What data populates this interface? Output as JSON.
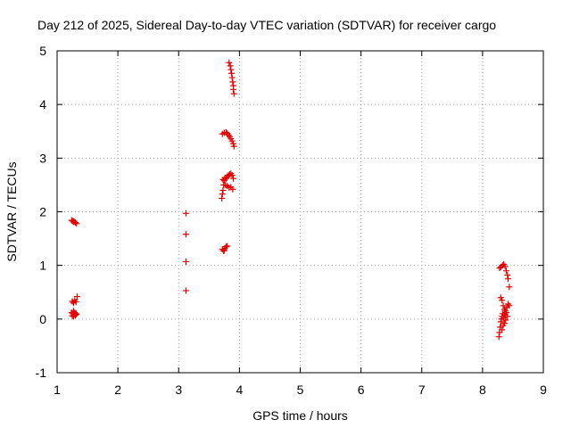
{
  "chart_data": {
    "type": "scatter",
    "title": "Day 212 of 2025, Sidereal Day-to-day VTEC variation (SDTVAR) for receiver cargo",
    "xlabel": "GPS time / hours",
    "ylabel": "SDTVAR / TECUs",
    "xlim": [
      1,
      9
    ],
    "ylim": [
      -1,
      5
    ],
    "xticks": [
      "1",
      "2",
      "3",
      "4",
      "5",
      "6",
      "7",
      "8",
      "9"
    ],
    "yticks": [
      "-1",
      "0",
      "1",
      "2",
      "3",
      "4",
      "5"
    ],
    "grid": true,
    "marker": "plus",
    "color": "#e00000",
    "series": [
      {
        "name": "SDTVAR",
        "points": [
          [
            1.24,
            1.84
          ],
          [
            1.26,
            1.83
          ],
          [
            1.28,
            1.82
          ],
          [
            1.3,
            1.8
          ],
          [
            1.32,
            1.78
          ],
          [
            1.27,
            1.81
          ],
          [
            1.25,
            0.33
          ],
          [
            1.27,
            0.3
          ],
          [
            1.29,
            0.35
          ],
          [
            1.31,
            0.32
          ],
          [
            1.33,
            0.42
          ],
          [
            1.24,
            0.12
          ],
          [
            1.25,
            0.06
          ],
          [
            1.26,
            0.1
          ],
          [
            1.27,
            0.15
          ],
          [
            1.28,
            0.08
          ],
          [
            1.29,
            0.12
          ],
          [
            1.3,
            0.07
          ],
          [
            1.31,
            0.1
          ],
          [
            1.32,
            0.09
          ],
          [
            1.27,
            0.05
          ],
          [
            3.12,
            1.97
          ],
          [
            3.12,
            1.58
          ],
          [
            3.12,
            1.07
          ],
          [
            3.12,
            0.53
          ],
          [
            3.72,
            1.3
          ],
          [
            3.74,
            1.27
          ],
          [
            3.76,
            1.32
          ],
          [
            3.78,
            1.35
          ],
          [
            3.8,
            1.36
          ],
          [
            3.75,
            1.28
          ],
          [
            3.71,
            2.25
          ],
          [
            3.72,
            2.33
          ],
          [
            3.73,
            2.4
          ],
          [
            3.74,
            2.5
          ],
          [
            3.75,
            2.58
          ],
          [
            3.73,
            2.6
          ],
          [
            3.76,
            2.63
          ],
          [
            3.78,
            2.62
          ],
          [
            3.8,
            2.65
          ],
          [
            3.82,
            2.68
          ],
          [
            3.84,
            2.7
          ],
          [
            3.86,
            2.71
          ],
          [
            3.88,
            2.68
          ],
          [
            3.9,
            2.62
          ],
          [
            3.77,
            2.5
          ],
          [
            3.8,
            2.48
          ],
          [
            3.83,
            2.45
          ],
          [
            3.86,
            2.46
          ],
          [
            3.89,
            2.42
          ],
          [
            3.72,
            3.45
          ],
          [
            3.75,
            3.47
          ],
          [
            3.78,
            3.48
          ],
          [
            3.8,
            3.46
          ],
          [
            3.82,
            3.43
          ],
          [
            3.84,
            3.4
          ],
          [
            3.86,
            3.36
          ],
          [
            3.88,
            3.32
          ],
          [
            3.9,
            3.27
          ],
          [
            3.91,
            3.22
          ],
          [
            3.83,
            4.78
          ],
          [
            3.85,
            4.72
          ],
          [
            3.86,
            4.65
          ],
          [
            3.87,
            4.58
          ],
          [
            3.88,
            4.5
          ],
          [
            3.89,
            4.42
          ],
          [
            3.9,
            4.35
          ],
          [
            3.9,
            4.28
          ],
          [
            3.91,
            4.2
          ],
          [
            8.28,
            0.95
          ],
          [
            8.3,
            0.97
          ],
          [
            8.33,
            1.0
          ],
          [
            8.35,
            1.02
          ],
          [
            8.37,
            0.98
          ],
          [
            8.39,
            0.9
          ],
          [
            8.41,
            0.82
          ],
          [
            8.42,
            0.75
          ],
          [
            8.44,
            0.6
          ],
          [
            8.3,
            0.4
          ],
          [
            8.32,
            0.35
          ],
          [
            8.34,
            0.25
          ],
          [
            8.36,
            0.18
          ],
          [
            8.38,
            0.15
          ],
          [
            8.4,
            0.22
          ],
          [
            8.42,
            0.28
          ],
          [
            8.44,
            0.25
          ],
          [
            8.27,
            -0.33
          ],
          [
            8.28,
            -0.25
          ],
          [
            8.29,
            -0.15
          ],
          [
            8.3,
            -0.05
          ],
          [
            8.31,
            0.0
          ],
          [
            8.32,
            0.05
          ],
          [
            8.33,
            0.1
          ],
          [
            8.35,
            0.02
          ],
          [
            8.37,
            0.08
          ],
          [
            8.39,
            0.12
          ],
          [
            8.41,
            0.05
          ],
          [
            8.36,
            -0.08
          ],
          [
            8.38,
            -0.02
          ],
          [
            8.34,
            -0.12
          ],
          [
            8.32,
            -0.2
          ]
        ]
      }
    ]
  }
}
